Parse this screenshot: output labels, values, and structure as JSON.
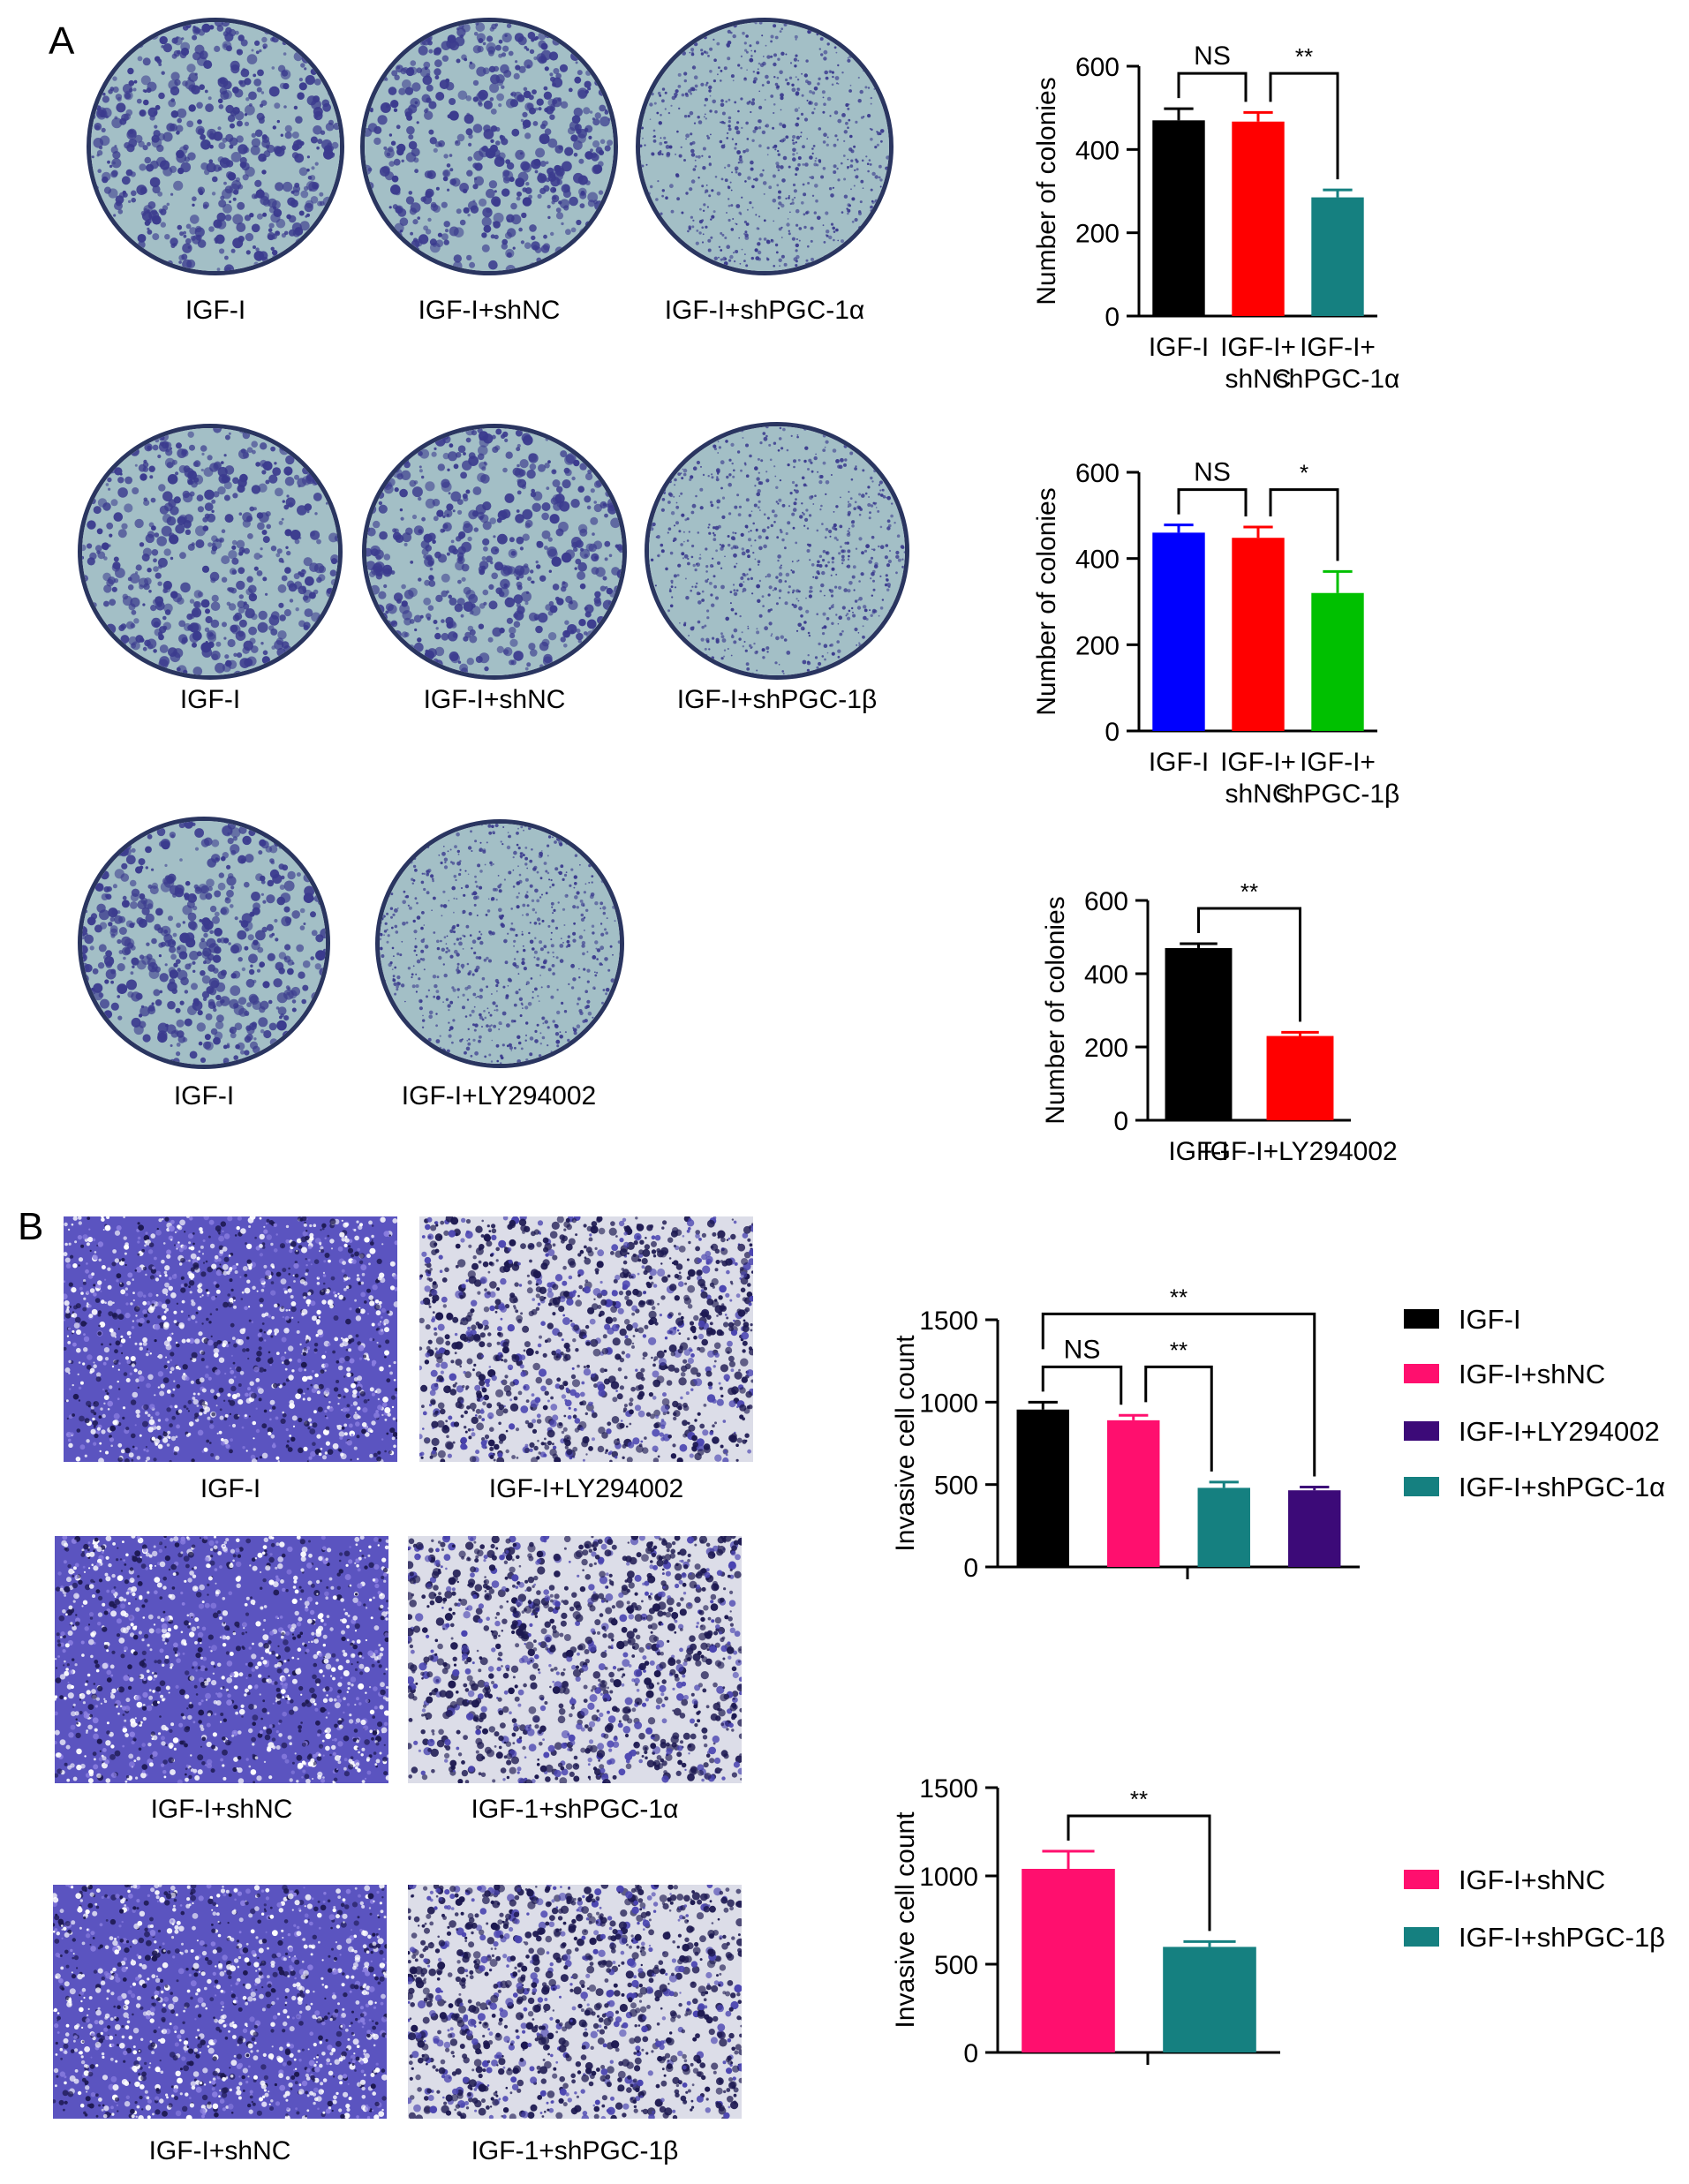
{
  "panels": {
    "a": "A",
    "b": "B"
  },
  "colors": {
    "black": "#000000",
    "red": "#ff0000",
    "teal": "#158080",
    "blue": "#0000ff",
    "green": "#00c000",
    "pink": "#ff0f6e",
    "purple": "#3c0a78",
    "dish_fill": "#a3bfc6",
    "colony": "#3b3b8e",
    "stain": "#4a44b0"
  },
  "dish_rows": [
    {
      "labels": [
        "IGF-I",
        "IGF-I+shNC",
        "IGF-I+shPGC-1α"
      ]
    },
    {
      "labels": [
        "IGF-I",
        "IGF-I+shNC",
        "IGF-I+shPGC-1β"
      ]
    },
    {
      "labels": [
        "IGF-I",
        "IGF-I+LY294002"
      ]
    }
  ],
  "micro_labels": [
    "IGF-I",
    "IGF-I+LY294002",
    "IGF-I+shNC",
    "IGF-1+shPGC-1α",
    "IGF-I+shNC",
    "IGF-1+shPGC-1β"
  ],
  "legends": {
    "b1": [
      {
        "label": "IGF-I",
        "color": "#000000"
      },
      {
        "label": "IGF-I+shNC",
        "color": "#ff0f6e"
      },
      {
        "label": "IGF-I+LY294002",
        "color": "#3c0a78"
      },
      {
        "label": "IGF-I+shPGC-1α",
        "color": "#158080"
      }
    ],
    "b2": [
      {
        "label": "IGF-I+shNC",
        "color": "#ff0f6e"
      },
      {
        "label": "IGF-I+shPGC-1β",
        "color": "#158080"
      }
    ]
  },
  "chart_data": [
    {
      "id": "a1",
      "type": "bar",
      "ylabel": "Number of colonies",
      "ylim": [
        0,
        600
      ],
      "yticks": [
        0,
        200,
        400,
        600
      ],
      "categories": [
        [
          "IGF-I"
        ],
        [
          "IGF-I+",
          "shNC"
        ],
        [
          "IGF-I+",
          "shPGC-1α"
        ]
      ],
      "values": [
        470,
        467,
        285
      ],
      "errors": [
        28,
        22,
        18
      ],
      "colors": [
        "#000000",
        "#ff0000",
        "#158080"
      ],
      "annotations": [
        {
          "from": 0,
          "to": 1,
          "text": "NS"
        },
        {
          "from": 1,
          "to": 2,
          "text": "**"
        }
      ]
    },
    {
      "id": "a2",
      "type": "bar",
      "ylabel": "Number of colonies",
      "ylim": [
        0,
        600
      ],
      "yticks": [
        0,
        200,
        400,
        600
      ],
      "categories": [
        [
          "IGF-I"
        ],
        [
          "IGF-I+",
          "shNC"
        ],
        [
          "IGF-I+",
          "shPGC-1β"
        ]
      ],
      "values": [
        460,
        448,
        320
      ],
      "errors": [
        18,
        25,
        50
      ],
      "colors": [
        "#0000ff",
        "#ff0000",
        "#00c000"
      ],
      "annotations": [
        {
          "from": 0,
          "to": 1,
          "text": "NS"
        },
        {
          "from": 1,
          "to": 2,
          "text": "*"
        }
      ]
    },
    {
      "id": "a3",
      "type": "bar",
      "ylabel": "Number of colonies",
      "ylim": [
        0,
        600
      ],
      "yticks": [
        0,
        200,
        400,
        600
      ],
      "categories": [
        [
          "IGF-I"
        ],
        [
          "IGF-I+LY294002"
        ]
      ],
      "values": [
        470,
        230
      ],
      "errors": [
        12,
        10
      ],
      "colors": [
        "#000000",
        "#ff0000"
      ],
      "annotations": [
        {
          "from": 0,
          "to": 1,
          "text": "**"
        }
      ]
    },
    {
      "id": "b1",
      "type": "bar",
      "ylabel": "Invasive cell count",
      "ylim": [
        0,
        1500
      ],
      "yticks": [
        0,
        500,
        1000,
        1500
      ],
      "categories": [
        [],
        [],
        [],
        []
      ],
      "values": [
        955,
        890,
        480,
        465
      ],
      "errors": [
        45,
        30,
        35,
        20
      ],
      "colors": [
        "#000000",
        "#ff0f6e",
        "#158080",
        "#3c0a78"
      ],
      "annotations": [
        {
          "from": 0,
          "to": 1,
          "text": "NS",
          "level": 0
        },
        {
          "from": 1,
          "to": 2,
          "text": "**",
          "level": 0
        },
        {
          "from": 0,
          "to": 3,
          "text": "**",
          "level": 1
        }
      ]
    },
    {
      "id": "b2",
      "type": "bar",
      "ylabel": "Invasive cell count",
      "ylim": [
        0,
        1500
      ],
      "yticks": [
        0,
        500,
        1000,
        1500
      ],
      "categories": [
        [],
        []
      ],
      "values": [
        1040,
        598
      ],
      "errors": [
        100,
        30
      ],
      "colors": [
        "#ff0f6e",
        "#158080"
      ],
      "annotations": [
        {
          "from": 0,
          "to": 1,
          "text": "**"
        }
      ]
    }
  ]
}
